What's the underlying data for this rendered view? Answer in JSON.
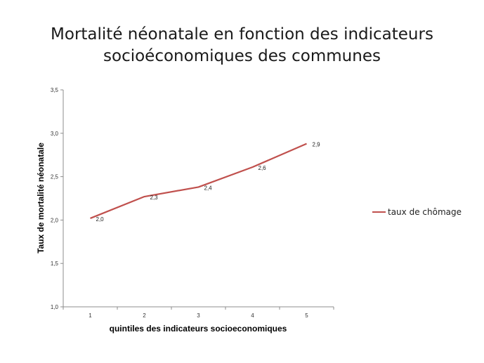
{
  "chart_data": {
    "type": "line",
    "title_line1": "Mortalité néonatale en fonction des indicateurs",
    "title_line2": "socioéconomiques des communes",
    "xlabel": "quintiles des indicateurs socioeconomiques",
    "ylabel": "Taux de mortalité néonatale",
    "categories": [
      "1",
      "2",
      "3",
      "4",
      "5"
    ],
    "y_ticks": [
      "1,0",
      "1,5",
      "2,0",
      "2,5",
      "3,0",
      "3,5"
    ],
    "ylim": [
      1.0,
      3.5
    ],
    "grid": false,
    "legend_position": "right",
    "series": [
      {
        "name": "taux de chômage",
        "color": "#c0504d",
        "values": [
          2.02,
          2.27,
          2.38,
          2.61,
          2.88
        ],
        "labels": [
          "2,0",
          "2,3",
          "2,4",
          "2,6",
          "2,9"
        ]
      }
    ]
  }
}
